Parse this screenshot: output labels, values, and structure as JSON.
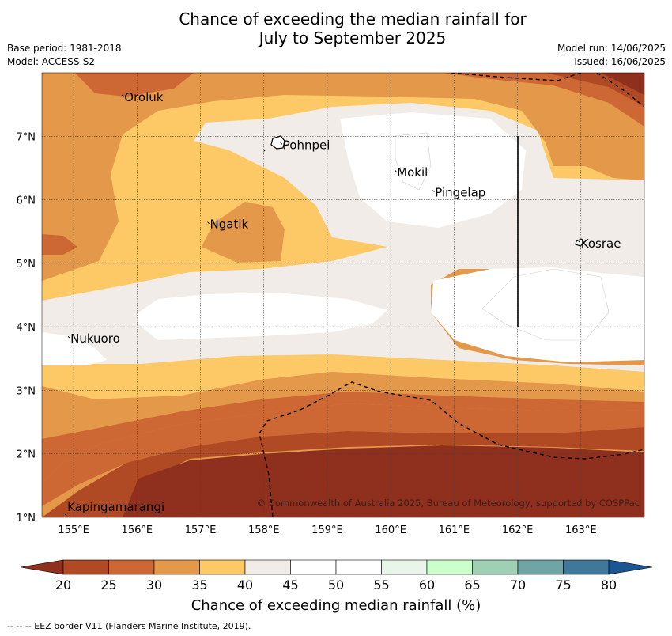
{
  "title_line1": "Chance of exceeding the median rainfall for",
  "title_line2": "July to September 2025",
  "meta": {
    "base_period": "Base period: 1981-2018",
    "model": "Model: ACCESS-S2",
    "model_run": "Model run: 14/06/2025",
    "issued": "Issued: 16/06/2025"
  },
  "map": {
    "lon_range": [
      154.5,
      164.0
    ],
    "lat_range": [
      1.0,
      8.0
    ],
    "lon_ticks": [
      "155°E",
      "156°E",
      "157°E",
      "158°E",
      "159°E",
      "160°E",
      "161°E",
      "162°E",
      "163°E"
    ],
    "lat_ticks": [
      "1°N",
      "2°N",
      "3°N",
      "4°N",
      "5°N",
      "6°N",
      "7°N"
    ],
    "places": [
      {
        "name": "Oroluk",
        "lon": 155.8,
        "lat": 7.6
      },
      {
        "name": "Pohnpei",
        "lon": 158.3,
        "lat": 6.85
      },
      {
        "name": "Mokil",
        "lon": 160.1,
        "lat": 6.42
      },
      {
        "name": "Pingelap",
        "lon": 160.7,
        "lat": 6.1
      },
      {
        "name": "Ngatik",
        "lon": 157.15,
        "lat": 5.6
      },
      {
        "name": "Kosrae",
        "lon": 163.0,
        "lat": 5.3
      },
      {
        "name": "Nukuoro",
        "lon": 154.95,
        "lat": 3.8
      },
      {
        "name": "Kapingamarangi",
        "lon": 154.9,
        "lat": 1.0
      }
    ],
    "copyright": "© Commonwealth of Australia 2025, Bureau of Meteorology, supported by COSPPac"
  },
  "colorbar": {
    "ticks": [
      "20",
      "25",
      "30",
      "35",
      "40",
      "45",
      "50",
      "55",
      "60",
      "65",
      "70",
      "75",
      "80"
    ],
    "colors": [
      "#8f2f1d",
      "#b04a25",
      "#cd6733",
      "#e4984a",
      "#fdc966",
      "#f1ece7",
      "#ffffff",
      "#ffffff",
      "#e8f5e8",
      "#ccffcc",
      "#9fd0b4",
      "#6fa5a5",
      "#3f7898",
      "#1b5592"
    ],
    "label": "Chance of exceeding median rainfall (%)"
  },
  "footnote": "--  --  -- EEZ border V11 (Flanders Marine Institute, 2019)."
}
